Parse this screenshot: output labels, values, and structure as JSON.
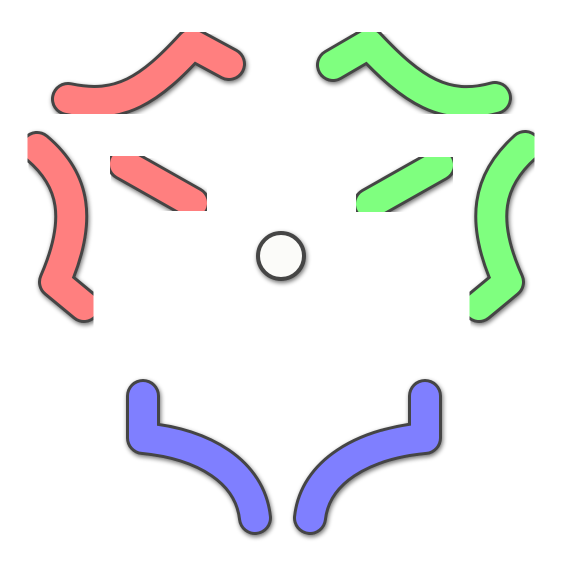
{
  "board": {
    "background": "#ffffff",
    "outline_color": "#444444"
  },
  "players": [
    {
      "name": "red",
      "color": "#ff7f7f"
    },
    {
      "name": "green",
      "color": "#7fff7f"
    },
    {
      "name": "blue",
      "color": "#7f7fff"
    }
  ],
  "center_token": {
    "fill": "#fbfbf9",
    "stroke": "#444444",
    "icon": "circle-token"
  }
}
